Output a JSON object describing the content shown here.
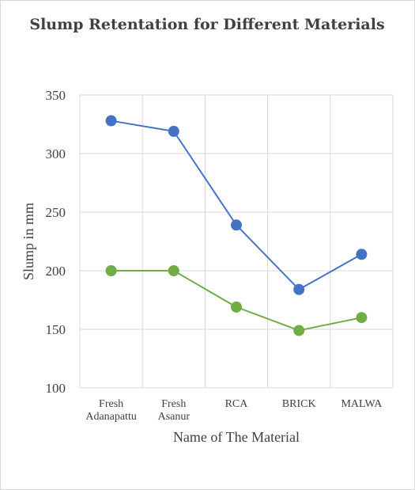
{
  "chart_data": {
    "type": "line",
    "title": "Slump Retentation for Different Materials",
    "xlabel": "Name of The Material",
    "ylabel": "Slump in mm",
    "categories": [
      [
        "Fresh",
        "Adanapattu"
      ],
      [
        "Fresh",
        "Asanur"
      ],
      [
        "RCA"
      ],
      [
        "BRICK"
      ],
      [
        "MALWA"
      ]
    ],
    "ylim": [
      100,
      350
    ],
    "yticks": [
      100,
      150,
      200,
      250,
      300,
      350
    ],
    "grid": true,
    "legend": "none",
    "series": [
      {
        "color": "#4472c4",
        "values": [
          328,
          319,
          239,
          184,
          214
        ]
      },
      {
        "color": "#70ad47",
        "values": [
          200,
          200,
          169,
          149,
          160
        ]
      }
    ]
  }
}
